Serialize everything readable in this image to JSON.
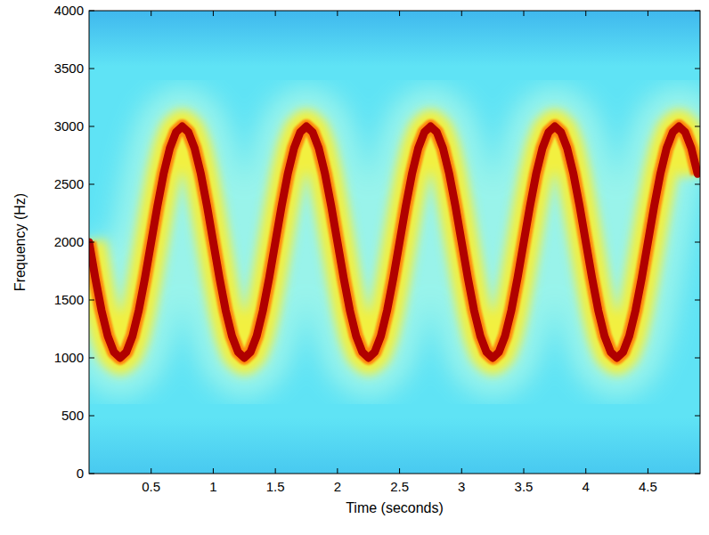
{
  "chart_data": {
    "type": "spectrogram",
    "xlabel": "Time (seconds)",
    "ylabel": "Frequency (Hz)",
    "x": [
      0,
      0.05,
      0.1,
      0.15,
      0.2,
      0.25,
      0.3,
      0.35,
      0.4,
      0.45,
      0.5,
      0.55,
      0.6,
      0.65,
      0.7,
      0.75,
      0.8,
      0.85,
      0.9,
      0.95,
      1,
      1.05,
      1.1,
      1.15,
      1.2,
      1.25,
      1.3,
      1.35,
      1.4,
      1.45,
      1.5,
      1.55,
      1.6,
      1.65,
      1.7,
      1.75,
      1.8,
      1.85,
      1.9,
      1.95,
      2,
      2.05,
      2.1,
      2.15,
      2.2,
      2.25,
      2.3,
      2.35,
      2.4,
      2.45,
      2.5,
      2.55,
      2.6,
      2.65,
      2.7,
      2.75,
      2.8,
      2.85,
      2.9,
      2.95,
      3,
      3.05,
      3.1,
      3.15,
      3.2,
      3.25,
      3.3,
      3.35,
      3.4,
      3.45,
      3.5,
      3.55,
      3.6,
      3.65,
      3.7,
      3.75,
      3.8,
      3.85,
      3.9,
      3.95,
      4,
      4.05,
      4.1,
      4.15,
      4.2,
      4.25,
      4.3,
      4.35,
      4.4,
      4.45,
      4.5,
      4.55,
      4.6,
      4.65,
      4.7,
      4.75,
      4.8,
      4.85,
      4.9
    ],
    "values": [
      2000,
      1690,
      1410,
      1190,
      1050,
      1000,
      1050,
      1190,
      1410,
      1690,
      2000,
      2310,
      2590,
      2810,
      2950,
      3000,
      2950,
      2810,
      2590,
      2310,
      2000,
      1690,
      1410,
      1190,
      1050,
      1000,
      1050,
      1190,
      1410,
      1690,
      2000,
      2310,
      2590,
      2810,
      2950,
      3000,
      2950,
      2810,
      2590,
      2310,
      2000,
      1690,
      1410,
      1190,
      1050,
      1000,
      1050,
      1190,
      1410,
      1690,
      2000,
      2310,
      2590,
      2810,
      2950,
      3000,
      2950,
      2810,
      2590,
      2310,
      2000,
      1690,
      1410,
      1190,
      1050,
      1000,
      1050,
      1190,
      1410,
      1690,
      2000,
      2310,
      2590,
      2810,
      2950,
      3000,
      2950,
      2810,
      2590,
      2310,
      2000,
      1690,
      1410,
      1190,
      1050,
      1000,
      1050,
      1190,
      1410,
      1690,
      2000,
      2310,
      2590,
      2810,
      2950,
      3000,
      2950,
      2810,
      2590
    ],
    "color": "#b00000",
    "xlim": [
      0,
      4.92
    ],
    "ylim": [
      0,
      4000
    ],
    "xticks": [
      0.5,
      1,
      1.5,
      2,
      2.5,
      3,
      3.5,
      4,
      4.5
    ],
    "yticks": [
      0,
      500,
      1000,
      1500,
      2000,
      2500,
      3000,
      3500,
      4000
    ],
    "grid": false
  }
}
